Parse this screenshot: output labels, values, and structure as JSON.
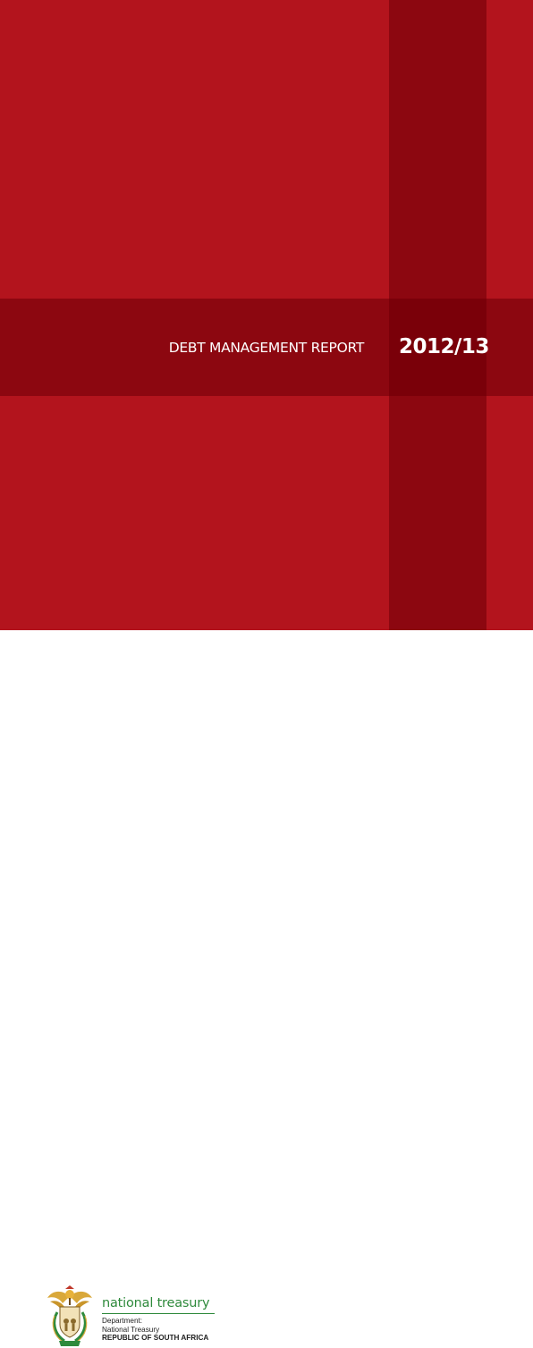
{
  "cover": {
    "title": "DEBT MANAGEMENT REPORT",
    "year": "2012/13",
    "colors": {
      "background": "#b3141d",
      "band": "#8c0710",
      "band_intersection": "#7a0009",
      "text": "#ffffff"
    }
  },
  "footer": {
    "logo_icon": "coat-of-arms-icon",
    "wordmark": "national treasury",
    "department_label": "Department:",
    "department_name": "National Treasury",
    "country": "REPUBLIC OF SOUTH AFRICA",
    "colors": {
      "wordmark": "#2f8a3c"
    }
  }
}
